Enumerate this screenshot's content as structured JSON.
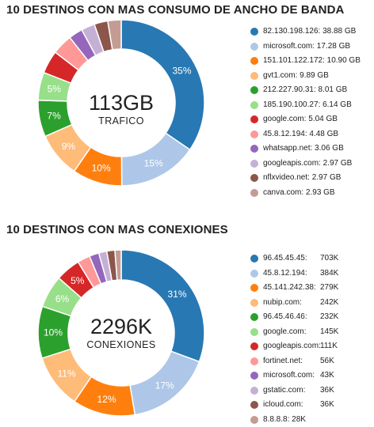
{
  "chart_data": [
    {
      "type": "pie",
      "title": "10 DESTINOS CON MAS CONSUMO DE ANCHO DE BANDA",
      "center_value": "113GB",
      "center_label": "TRAFICO",
      "unit": "GB",
      "labels": [
        "82.130.198.126: 38.88 GB",
        "microsoft.com: 17.28 GB",
        "151.101.122.172: 10.90 GB",
        "gvt1.com: 9.89 GB",
        "212.227.90.31: 8.01 GB",
        "185.190.100.27: 6.14 GB",
        "google.com: 5.04 GB",
        "45.8.12.194: 4.48 GB",
        "whatsapp.net: 3.06 GB",
        "googleapis.com: 2.97 GB",
        "nflxvideo.net: 2.97 GB",
        "canva.com: 2.93 GB"
      ],
      "values": [
        38.88,
        17.28,
        10.9,
        9.89,
        8.01,
        6.14,
        5.04,
        4.48,
        3.06,
        2.97,
        2.97,
        2.93
      ],
      "slice_labels": [
        "35%",
        "15%",
        "10%",
        "9%",
        "7%",
        "5%",
        "",
        "",
        "",
        "",
        "",
        ""
      ],
      "colors": [
        "#2878b4",
        "#aec7e8",
        "#ff7f0e",
        "#ffbb78",
        "#2ca02c",
        "#98df8a",
        "#d62728",
        "#ff9896",
        "#9467bd",
        "#c5b0d5",
        "#8c564b",
        "#c49c94"
      ],
      "legend_position": "right"
    },
    {
      "type": "pie",
      "title": "10 DESTINOS CON MAS CONEXIONES",
      "center_value": "2296K",
      "center_label": "CONEXIONES",
      "unit": "K",
      "labels": [
        "96.45.45.45:",
        "45.8.12.194:",
        "45.141.242.38:",
        "nubip.com:",
        "96.45.46.46:",
        "google.com:",
        "googleapis.com:",
        "fortinet.net:",
        "microsoft.com:",
        "gstatic.com:",
        "icloud.com:",
        "8.8.8.8: 28K"
      ],
      "value_texts": [
        "703K",
        "384K",
        "279K",
        "242K",
        "232K",
        "145K",
        "111K",
        "56K",
        "43K",
        "36K",
        "36K",
        ""
      ],
      "values": [
        703,
        384,
        279,
        242,
        232,
        145,
        111,
        56,
        43,
        36,
        36,
        28
      ],
      "slice_labels": [
        "31%",
        "17%",
        "12%",
        "11%",
        "10%",
        "6%",
        "5%",
        "",
        "",
        "",
        "",
        ""
      ],
      "colors": [
        "#2878b4",
        "#aec7e8",
        "#ff7f0e",
        "#ffbb78",
        "#2ca02c",
        "#98df8a",
        "#d62728",
        "#ff9896",
        "#9467bd",
        "#c5b0d5",
        "#8c564b",
        "#c49c94"
      ],
      "legend_position": "right"
    }
  ]
}
